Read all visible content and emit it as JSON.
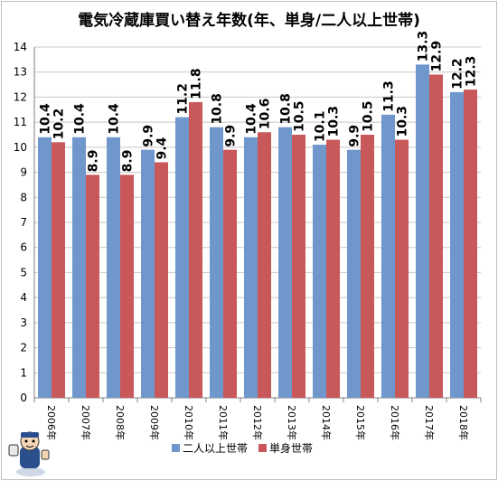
{
  "chart_data": {
    "type": "bar",
    "title": "電気冷蔵庫買い替え年数(年、単身/二人以上世帯)",
    "categories": [
      "2006年",
      "2007年",
      "2008年",
      "2009年",
      "2010年",
      "2011年",
      "2012年",
      "2013年",
      "2014年",
      "2015年",
      "2016年",
      "2017年",
      "2018年"
    ],
    "series": [
      {
        "name": "二人以上世帯",
        "color": "#6f97cc",
        "values": [
          10.4,
          10.4,
          10.4,
          9.9,
          11.2,
          10.8,
          10.4,
          10.8,
          10.1,
          9.9,
          11.3,
          13.3,
          12.2
        ]
      },
      {
        "name": "単身世帯",
        "color": "#c9585a",
        "values": [
          10.2,
          8.9,
          8.9,
          9.4,
          11.8,
          9.9,
          10.6,
          10.5,
          10.3,
          10.5,
          10.3,
          12.9,
          12.3
        ]
      }
    ],
    "ylim": [
      0,
      14
    ],
    "yticks": [
      0,
      1,
      2,
      3,
      4,
      5,
      6,
      7,
      8,
      9,
      10,
      11,
      12,
      13,
      14
    ],
    "grid": true,
    "legend": "bottom",
    "xlabel": "",
    "ylabel": ""
  }
}
